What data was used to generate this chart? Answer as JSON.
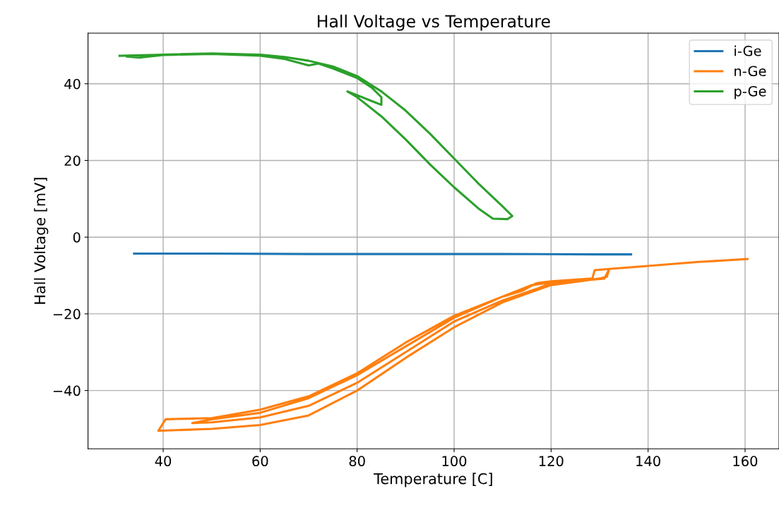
{
  "chart_data": {
    "type": "line",
    "title": "Hall Voltage vs Temperature",
    "xlabel": "Temperature [C]",
    "ylabel": "Hall Voltage [mV]",
    "xlim": [
      24.5,
      167
    ],
    "ylim": [
      -55.2,
      53.2
    ],
    "xticks": [
      40,
      60,
      80,
      100,
      120,
      140,
      160
    ],
    "yticks": [
      -40,
      -20,
      0,
      20,
      40
    ],
    "grid": true,
    "legend": "top right",
    "marker": "none",
    "line_style": "solid",
    "series": [
      {
        "name": "i-Ge",
        "color": "#1f77b4",
        "x": [
          34,
          50,
          70,
          90,
          110,
          130,
          136.5
        ],
        "values": [
          -4.3,
          -4.3,
          -4.4,
          -4.4,
          -4.4,
          -4.5,
          -4.5
        ]
      },
      {
        "name": "n-Ge",
        "color": "#ff7f0e",
        "x": [
          160.5,
          150,
          140,
          132,
          129,
          128.5,
          120,
          117,
          114,
          110,
          100,
          90,
          80,
          70,
          60,
          50,
          40.5,
          39,
          50,
          60,
          70,
          80,
          90,
          100,
          110,
          120,
          130,
          131.5,
          132,
          140,
          132,
          131,
          120,
          117,
          110,
          100,
          90,
          80,
          70,
          60,
          50,
          46,
          50,
          60,
          70,
          80,
          90,
          100,
          110,
          116,
          120
        ],
        "values": [
          -5.7,
          -6.5,
          -7.5,
          -8.3,
          -8.6,
          -10.8,
          -11.5,
          -12,
          -14,
          -15.5,
          -20.5,
          -27.5,
          -35.5,
          -41.5,
          -45,
          -47.2,
          -47.5,
          -50.5,
          -50,
          -49,
          -46.5,
          -40,
          -31.5,
          -23.5,
          -17,
          -12.5,
          -10.8,
          -10.3,
          -8.3,
          -7.5,
          -8.3,
          -10.8,
          -12,
          -13.5,
          -16.5,
          -22,
          -30,
          -38,
          -44,
          -47,
          -48.3,
          -48.5,
          -47.5,
          -45.8,
          -42,
          -36,
          -28.5,
          -21,
          -15.5,
          -12.5,
          -11.8
        ]
      },
      {
        "name": "p-Ge",
        "color": "#2ca02c",
        "x": [
          31,
          40,
          50,
          60,
          65,
          70,
          75,
          80,
          85,
          90,
          95,
          100,
          105,
          110,
          112,
          111,
          108,
          105,
          100,
          95,
          90,
          85,
          80,
          78,
          83,
          85,
          85,
          83,
          80,
          75,
          72,
          70,
          65,
          60,
          50,
          40,
          35,
          32.5
        ],
        "values": [
          47.3,
          47.6,
          47.9,
          47.6,
          47,
          46,
          44.5,
          42,
          38,
          33,
          27,
          20.5,
          14,
          8,
          5.5,
          4.7,
          4.8,
          7.5,
          13,
          19,
          25.5,
          31.5,
          36.5,
          38,
          35.5,
          34.5,
          36.5,
          39,
          41.5,
          44,
          45.3,
          44.8,
          46.5,
          47.3,
          47.8,
          47.5,
          46.8,
          47.1
        ]
      }
    ]
  }
}
